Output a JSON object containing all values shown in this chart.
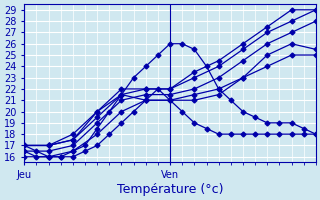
{
  "bg_color": "#d0e8f0",
  "grid_color": "#ffffff",
  "line_color": "#0000aa",
  "xlabel": "Température (°c)",
  "xlabel_fontsize": 9,
  "tick_label_fontsize": 7,
  "ymin": 15.5,
  "ymax": 29.5,
  "xmin": 0,
  "xmax": 48,
  "jeu_x": 0,
  "ven_x": 24,
  "series": [
    {
      "x": [
        0,
        2,
        4,
        6,
        8,
        10,
        12,
        14,
        16,
        18,
        20,
        22,
        24,
        26,
        28,
        30,
        32,
        34,
        36,
        38,
        40,
        42,
        44,
        46,
        48
      ],
      "y": [
        17,
        16.5,
        16,
        16,
        16,
        16.5,
        17,
        18,
        19,
        20,
        21,
        22,
        21,
        20,
        19,
        18.5,
        18,
        18,
        18,
        18,
        18,
        18,
        18,
        18,
        18
      ]
    },
    {
      "x": [
        0,
        2,
        4,
        6,
        8,
        10,
        12,
        14,
        16,
        18,
        20,
        22,
        24,
        26,
        28,
        30,
        32,
        34,
        36,
        38,
        40,
        42,
        44,
        46,
        48
      ],
      "y": [
        16.5,
        16,
        16,
        16,
        16.5,
        17,
        18.5,
        20,
        21.5,
        23,
        24,
        25,
        26,
        26,
        25.5,
        24,
        22,
        21,
        20,
        19.5,
        19,
        19,
        19,
        18.5,
        18
      ]
    },
    {
      "x": [
        0,
        4,
        8,
        12,
        16,
        20,
        24,
        28,
        32,
        36,
        40,
        44,
        48
      ],
      "y": [
        16,
        16,
        16.5,
        18,
        20,
        21,
        21,
        21.5,
        22,
        23,
        24,
        25,
        25
      ]
    },
    {
      "x": [
        0,
        4,
        8,
        12,
        16,
        20,
        24,
        28,
        32,
        36,
        40,
        44,
        48
      ],
      "y": [
        16.5,
        16.5,
        17,
        19,
        21,
        21.5,
        21.5,
        22,
        23,
        24.5,
        26,
        27,
        28
      ]
    },
    {
      "x": [
        0,
        4,
        8,
        12,
        16,
        20,
        24,
        28,
        32,
        36,
        40,
        44,
        48
      ],
      "y": [
        17,
        17,
        17.5,
        19.5,
        21.5,
        22,
        22,
        23,
        24,
        25.5,
        27,
        28,
        29
      ]
    },
    {
      "x": [
        0,
        4,
        8,
        12,
        16,
        20,
        24,
        28,
        32,
        36,
        40,
        44,
        48
      ],
      "y": [
        17,
        17,
        17.5,
        20,
        22,
        22,
        22,
        23.5,
        24.5,
        26,
        27.5,
        29,
        29
      ]
    },
    {
      "x": [
        0,
        4,
        8,
        12,
        16,
        20,
        24,
        28,
        32,
        36,
        40,
        44,
        48
      ],
      "y": [
        17,
        17,
        18,
        20,
        21.5,
        21,
        21,
        21,
        21.5,
        23,
        25,
        26,
        25.5
      ]
    }
  ]
}
